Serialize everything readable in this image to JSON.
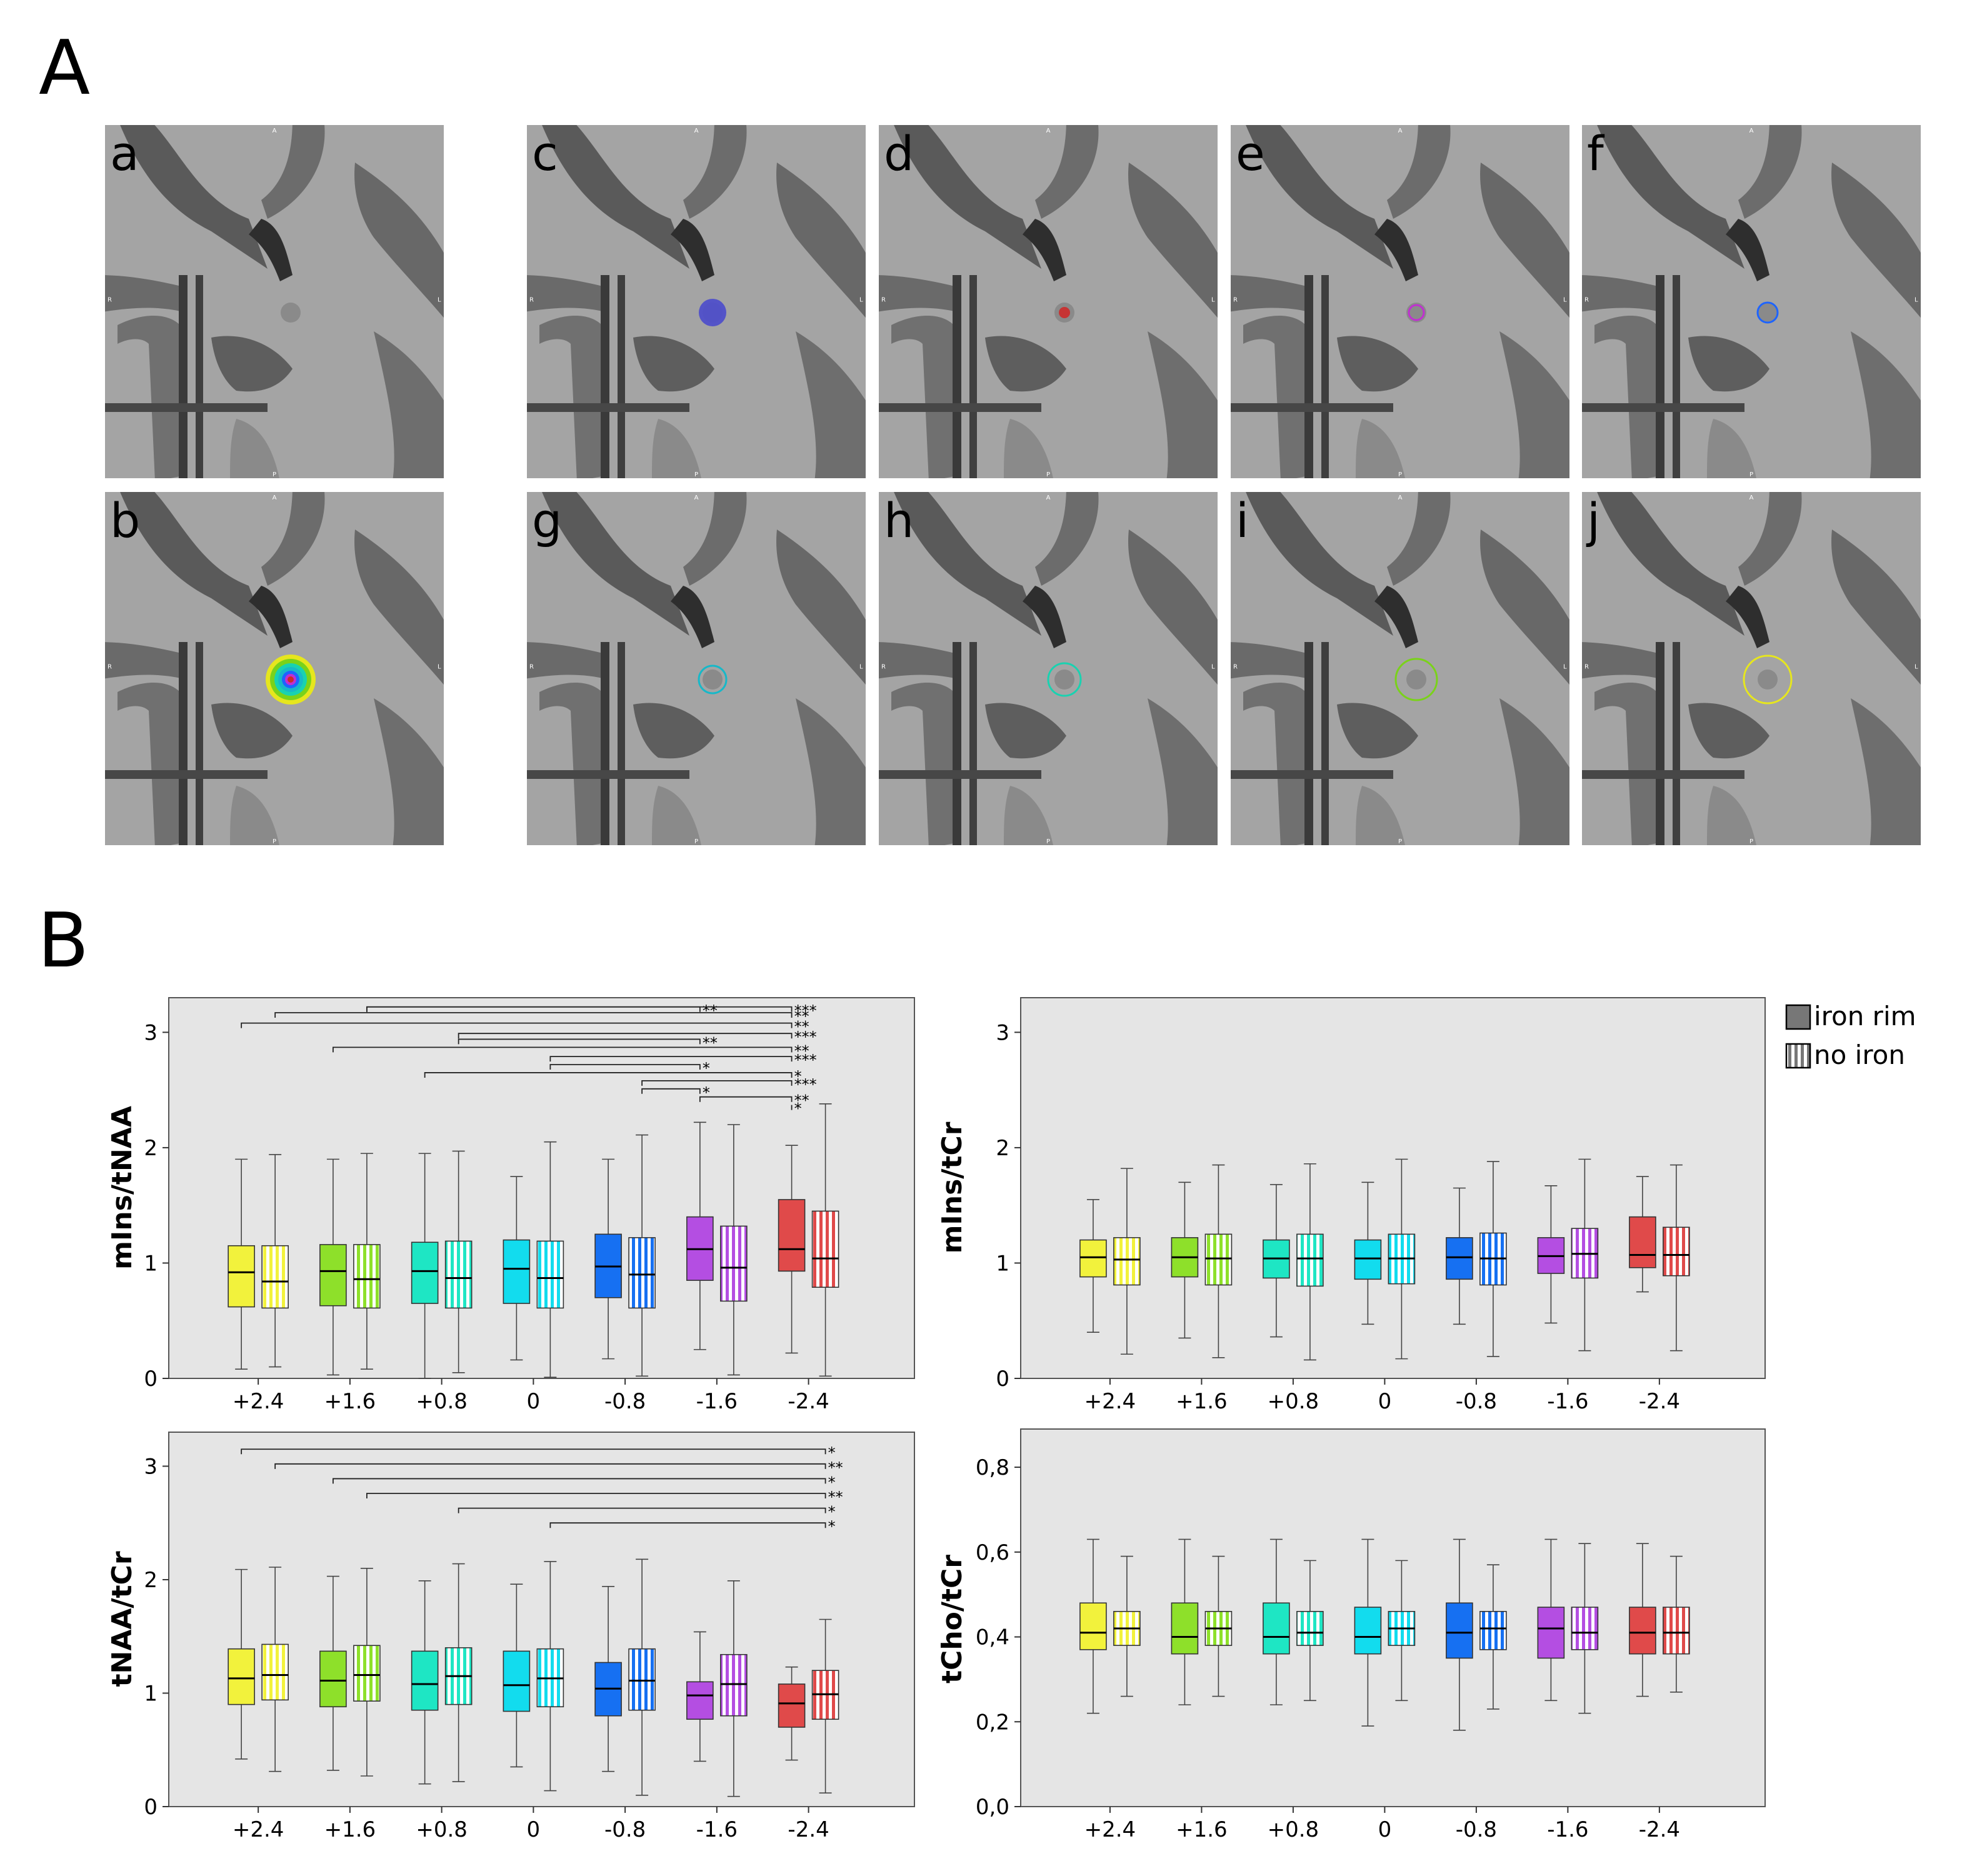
{
  "panel_labels": {
    "A": "A",
    "B": "B"
  },
  "mri_letters": [
    "a",
    "b",
    "c",
    "d",
    "e",
    "f",
    "g",
    "h",
    "i",
    "j"
  ],
  "mri_orientation": {
    "top": "A",
    "left": "R",
    "right": "L",
    "bottom": "P"
  },
  "mri_overlays": {
    "a": {
      "kind": "none"
    },
    "b": {
      "kind": "composite"
    },
    "c": {
      "kind": "blob",
      "color": "#4b4bcc"
    },
    "d": {
      "kind": "blob",
      "color": "#cc2a2a"
    },
    "e": {
      "kind": "ring",
      "color": "#c030d0"
    },
    "f": {
      "kind": "ring",
      "color": "#1e64ff"
    },
    "g": {
      "kind": "ring",
      "color": "#17b8c8"
    },
    "h": {
      "kind": "ring",
      "color": "#19d2b0"
    },
    "i": {
      "kind": "ring",
      "color": "#7ad21a"
    },
    "j": {
      "kind": "ring",
      "color": "#e6e61e"
    }
  },
  "legend": [
    {
      "label": "iron rim",
      "pattern": "solid"
    },
    {
      "label": "no iron",
      "pattern": "striped"
    }
  ],
  "colors": [
    "#f2f23c",
    "#8ee02a",
    "#1ee6c4",
    "#12dcee",
    "#1670f2",
    "#b44ee2",
    "#e04a4a"
  ],
  "chart_data": [
    {
      "type": "boxplot",
      "ylabel": "mIns/tNAA",
      "categories": [
        "+2.4",
        "+1.6",
        "+0.8",
        "0",
        "-0.8",
        "-1.6",
        "-2.4"
      ],
      "ylim": [
        0,
        3.3
      ],
      "yticks": [
        "0",
        "1",
        "2",
        "3"
      ],
      "yticks_values": [
        0,
        1,
        2,
        3
      ],
      "series": [
        {
          "name": "iron rim",
          "boxes": [
            {
              "min": 0.08,
              "q1": 0.62,
              "median": 0.92,
              "q3": 1.15,
              "max": 1.9
            },
            {
              "min": 0.03,
              "q1": 0.63,
              "median": 0.93,
              "q3": 1.16,
              "max": 1.9
            },
            {
              "min": 0.0,
              "q1": 0.65,
              "median": 0.93,
              "q3": 1.18,
              "max": 1.95
            },
            {
              "min": 0.16,
              "q1": 0.65,
              "median": 0.95,
              "q3": 1.2,
              "max": 1.75
            },
            {
              "min": 0.17,
              "q1": 0.7,
              "median": 0.97,
              "q3": 1.25,
              "max": 1.9
            },
            {
              "min": 0.25,
              "q1": 0.85,
              "median": 1.12,
              "q3": 1.4,
              "max": 2.22
            },
            {
              "min": 0.22,
              "q1": 0.93,
              "median": 1.12,
              "q3": 1.55,
              "max": 2.02
            }
          ]
        },
        {
          "name": "no iron",
          "boxes": [
            {
              "min": 0.1,
              "q1": 0.61,
              "median": 0.84,
              "q3": 1.15,
              "max": 1.94
            },
            {
              "min": 0.08,
              "q1": 0.61,
              "median": 0.86,
              "q3": 1.16,
              "max": 1.95
            },
            {
              "min": 0.05,
              "q1": 0.61,
              "median": 0.87,
              "q3": 1.19,
              "max": 1.97
            },
            {
              "min": 0.01,
              "q1": 0.61,
              "median": 0.87,
              "q3": 1.19,
              "max": 2.05
            },
            {
              "min": 0.02,
              "q1": 0.61,
              "median": 0.9,
              "q3": 1.22,
              "max": 2.11
            },
            {
              "min": 0.03,
              "q1": 0.67,
              "median": 0.96,
              "q3": 1.32,
              "max": 2.2
            },
            {
              "min": 0.02,
              "q1": 0.79,
              "median": 1.04,
              "q3": 1.45,
              "max": 2.38
            }
          ]
        }
      ],
      "significance": [
        {
          "from": 1,
          "from_series": 1,
          "to": 5,
          "to_series": 0,
          "y": 3.22,
          "label": "**"
        },
        {
          "from": 1,
          "from_series": 1,
          "to": 6,
          "to_series": 0,
          "y": 3.22,
          "label": "***"
        },
        {
          "from": 0,
          "from_series": 1,
          "to": 6,
          "to_series": 0,
          "y": 3.17,
          "label": "**"
        },
        {
          "from": 0,
          "from_series": 0,
          "to": 6,
          "to_series": 0,
          "y": 3.08,
          "label": "**"
        },
        {
          "from": 2,
          "from_series": 1,
          "to": 6,
          "to_series": 0,
          "y": 2.99,
          "label": "***"
        },
        {
          "from": 2,
          "from_series": 1,
          "to": 5,
          "to_series": 0,
          "y": 2.94,
          "label": "**"
        },
        {
          "from": 1,
          "from_series": 0,
          "to": 6,
          "to_series": 0,
          "y": 2.87,
          "label": "**"
        },
        {
          "from": 3,
          "from_series": 1,
          "to": 6,
          "to_series": 0,
          "y": 2.79,
          "label": "***"
        },
        {
          "from": 3,
          "from_series": 1,
          "to": 5,
          "to_series": 0,
          "y": 2.72,
          "label": "*"
        },
        {
          "from": 2,
          "from_series": 0,
          "to": 6,
          "to_series": 0,
          "y": 2.65,
          "label": "*"
        },
        {
          "from": 4,
          "from_series": 1,
          "to": 6,
          "to_series": 0,
          "y": 2.58,
          "label": "***"
        },
        {
          "from": 4,
          "from_series": 1,
          "to": 5,
          "to_series": 0,
          "y": 2.51,
          "label": "*"
        },
        {
          "from": 5,
          "from_series": 0,
          "to": 6,
          "to_series": 0,
          "y": 2.44,
          "label": "**"
        },
        {
          "from": 6,
          "from_series": 0,
          "to": 6,
          "to_series": 0,
          "y": 2.37,
          "label": "*"
        }
      ]
    },
    {
      "type": "boxplot",
      "ylabel": "mIns/tCr",
      "categories": [
        "+2.4",
        "+1.6",
        "+0.8",
        "0",
        "-0.8",
        "-1.6",
        "-2.4"
      ],
      "ylim": [
        0,
        3.3
      ],
      "yticks": [
        "0",
        "1",
        "2",
        "3"
      ],
      "yticks_values": [
        0,
        1,
        2,
        3
      ],
      "series": [
        {
          "name": "iron rim",
          "boxes": [
            {
              "min": 0.4,
              "q1": 0.88,
              "median": 1.05,
              "q3": 1.2,
              "max": 1.55
            },
            {
              "min": 0.35,
              "q1": 0.88,
              "median": 1.05,
              "q3": 1.22,
              "max": 1.7
            },
            {
              "min": 0.36,
              "q1": 0.87,
              "median": 1.04,
              "q3": 1.2,
              "max": 1.68
            },
            {
              "min": 0.47,
              "q1": 0.86,
              "median": 1.04,
              "q3": 1.2,
              "max": 1.7
            },
            {
              "min": 0.47,
              "q1": 0.86,
              "median": 1.05,
              "q3": 1.22,
              "max": 1.65
            },
            {
              "min": 0.48,
              "q1": 0.91,
              "median": 1.06,
              "q3": 1.22,
              "max": 1.67
            },
            {
              "min": 0.75,
              "q1": 0.96,
              "median": 1.07,
              "q3": 1.4,
              "max": 1.75
            }
          ]
        },
        {
          "name": "no iron",
          "boxes": [
            {
              "min": 0.21,
              "q1": 0.81,
              "median": 1.03,
              "q3": 1.22,
              "max": 1.82
            },
            {
              "min": 0.18,
              "q1": 0.81,
              "median": 1.04,
              "q3": 1.25,
              "max": 1.85
            },
            {
              "min": 0.16,
              "q1": 0.8,
              "median": 1.04,
              "q3": 1.25,
              "max": 1.86
            },
            {
              "min": 0.17,
              "q1": 0.82,
              "median": 1.04,
              "q3": 1.25,
              "max": 1.9
            },
            {
              "min": 0.19,
              "q1": 0.81,
              "median": 1.04,
              "q3": 1.26,
              "max": 1.88
            },
            {
              "min": 0.24,
              "q1": 0.87,
              "median": 1.08,
              "q3": 1.3,
              "max": 1.9
            },
            {
              "min": 0.24,
              "q1": 0.89,
              "median": 1.07,
              "q3": 1.31,
              "max": 1.85
            }
          ]
        }
      ],
      "significance": []
    },
    {
      "type": "boxplot",
      "ylabel": "tNAA/tCr",
      "categories": [
        "+2.4",
        "+1.6",
        "+0.8",
        "0",
        "-0.8",
        "-1.6",
        "-2.4"
      ],
      "ylim": [
        0,
        3.3
      ],
      "yticks": [
        "0",
        "1",
        "2",
        "3"
      ],
      "yticks_values": [
        0,
        1,
        2,
        3
      ],
      "series": [
        {
          "name": "iron rim",
          "boxes": [
            {
              "min": 0.42,
              "q1": 0.9,
              "median": 1.13,
              "q3": 1.39,
              "max": 2.09
            },
            {
              "min": 0.32,
              "q1": 0.88,
              "median": 1.11,
              "q3": 1.37,
              "max": 2.03
            },
            {
              "min": 0.2,
              "q1": 0.85,
              "median": 1.08,
              "q3": 1.37,
              "max": 1.99
            },
            {
              "min": 0.35,
              "q1": 0.84,
              "median": 1.07,
              "q3": 1.37,
              "max": 1.96
            },
            {
              "min": 0.31,
              "q1": 0.8,
              "median": 1.04,
              "q3": 1.27,
              "max": 1.94
            },
            {
              "min": 0.4,
              "q1": 0.77,
              "median": 0.98,
              "q3": 1.1,
              "max": 1.54
            },
            {
              "min": 0.41,
              "q1": 0.7,
              "median": 0.91,
              "q3": 1.08,
              "max": 1.23
            }
          ]
        },
        {
          "name": "no iron",
          "boxes": [
            {
              "min": 0.31,
              "q1": 0.94,
              "median": 1.16,
              "q3": 1.43,
              "max": 2.11
            },
            {
              "min": 0.27,
              "q1": 0.93,
              "median": 1.16,
              "q3": 1.42,
              "max": 2.1
            },
            {
              "min": 0.22,
              "q1": 0.9,
              "median": 1.15,
              "q3": 1.4,
              "max": 2.14
            },
            {
              "min": 0.14,
              "q1": 0.88,
              "median": 1.13,
              "q3": 1.39,
              "max": 2.16
            },
            {
              "min": 0.1,
              "q1": 0.85,
              "median": 1.11,
              "q3": 1.39,
              "max": 2.18
            },
            {
              "min": 0.09,
              "q1": 0.8,
              "median": 1.08,
              "q3": 1.34,
              "max": 1.99
            },
            {
              "min": 0.12,
              "q1": 0.77,
              "median": 0.99,
              "q3": 1.2,
              "max": 1.65
            }
          ]
        }
      ],
      "significance": [
        {
          "from": 0,
          "from_series": 0,
          "to": 6,
          "to_series": 1,
          "y": 3.15,
          "label": "*"
        },
        {
          "from": 0,
          "from_series": 1,
          "to": 6,
          "to_series": 1,
          "y": 3.02,
          "label": "**"
        },
        {
          "from": 1,
          "from_series": 0,
          "to": 6,
          "to_series": 1,
          "y": 2.89,
          "label": "*"
        },
        {
          "from": 1,
          "from_series": 1,
          "to": 6,
          "to_series": 1,
          "y": 2.76,
          "label": "**"
        },
        {
          "from": 2,
          "from_series": 1,
          "to": 6,
          "to_series": 1,
          "y": 2.63,
          "label": "*"
        },
        {
          "from": 3,
          "from_series": 1,
          "to": 6,
          "to_series": 1,
          "y": 2.5,
          "label": "*"
        }
      ]
    },
    {
      "type": "boxplot",
      "ylabel": "tCho/tCr",
      "categories": [
        "+2.4",
        "+1.6",
        "+0.8",
        "0",
        "-0.8",
        "-1.6",
        "-2.4"
      ],
      "ylim": [
        0,
        0.89
      ],
      "yticks": [
        "0,0",
        "0,2",
        "0,4",
        "0,6",
        "0,8"
      ],
      "yticks_values": [
        0,
        0.2,
        0.4,
        0.6,
        0.8
      ],
      "series": [
        {
          "name": "iron rim",
          "boxes": [
            {
              "min": 0.22,
              "q1": 0.37,
              "median": 0.41,
              "q3": 0.48,
              "max": 0.63
            },
            {
              "min": 0.24,
              "q1": 0.36,
              "median": 0.4,
              "q3": 0.48,
              "max": 0.63
            },
            {
              "min": 0.24,
              "q1": 0.36,
              "median": 0.4,
              "q3": 0.48,
              "max": 0.63
            },
            {
              "min": 0.19,
              "q1": 0.36,
              "median": 0.4,
              "q3": 0.47,
              "max": 0.63
            },
            {
              "min": 0.18,
              "q1": 0.35,
              "median": 0.41,
              "q3": 0.48,
              "max": 0.63
            },
            {
              "min": 0.25,
              "q1": 0.35,
              "median": 0.42,
              "q3": 0.47,
              "max": 0.63
            },
            {
              "min": 0.26,
              "q1": 0.36,
              "median": 0.41,
              "q3": 0.47,
              "max": 0.62
            }
          ]
        },
        {
          "name": "no iron",
          "boxes": [
            {
              "min": 0.26,
              "q1": 0.38,
              "median": 0.42,
              "q3": 0.46,
              "max": 0.59
            },
            {
              "min": 0.26,
              "q1": 0.38,
              "median": 0.42,
              "q3": 0.46,
              "max": 0.59
            },
            {
              "min": 0.25,
              "q1": 0.38,
              "median": 0.41,
              "q3": 0.46,
              "max": 0.58
            },
            {
              "min": 0.25,
              "q1": 0.38,
              "median": 0.42,
              "q3": 0.46,
              "max": 0.58
            },
            {
              "min": 0.23,
              "q1": 0.37,
              "median": 0.42,
              "q3": 0.46,
              "max": 0.57
            },
            {
              "min": 0.22,
              "q1": 0.37,
              "median": 0.41,
              "q3": 0.47,
              "max": 0.62
            },
            {
              "min": 0.27,
              "q1": 0.36,
              "median": 0.41,
              "q3": 0.47,
              "max": 0.59
            }
          ]
        }
      ],
      "significance": []
    }
  ]
}
